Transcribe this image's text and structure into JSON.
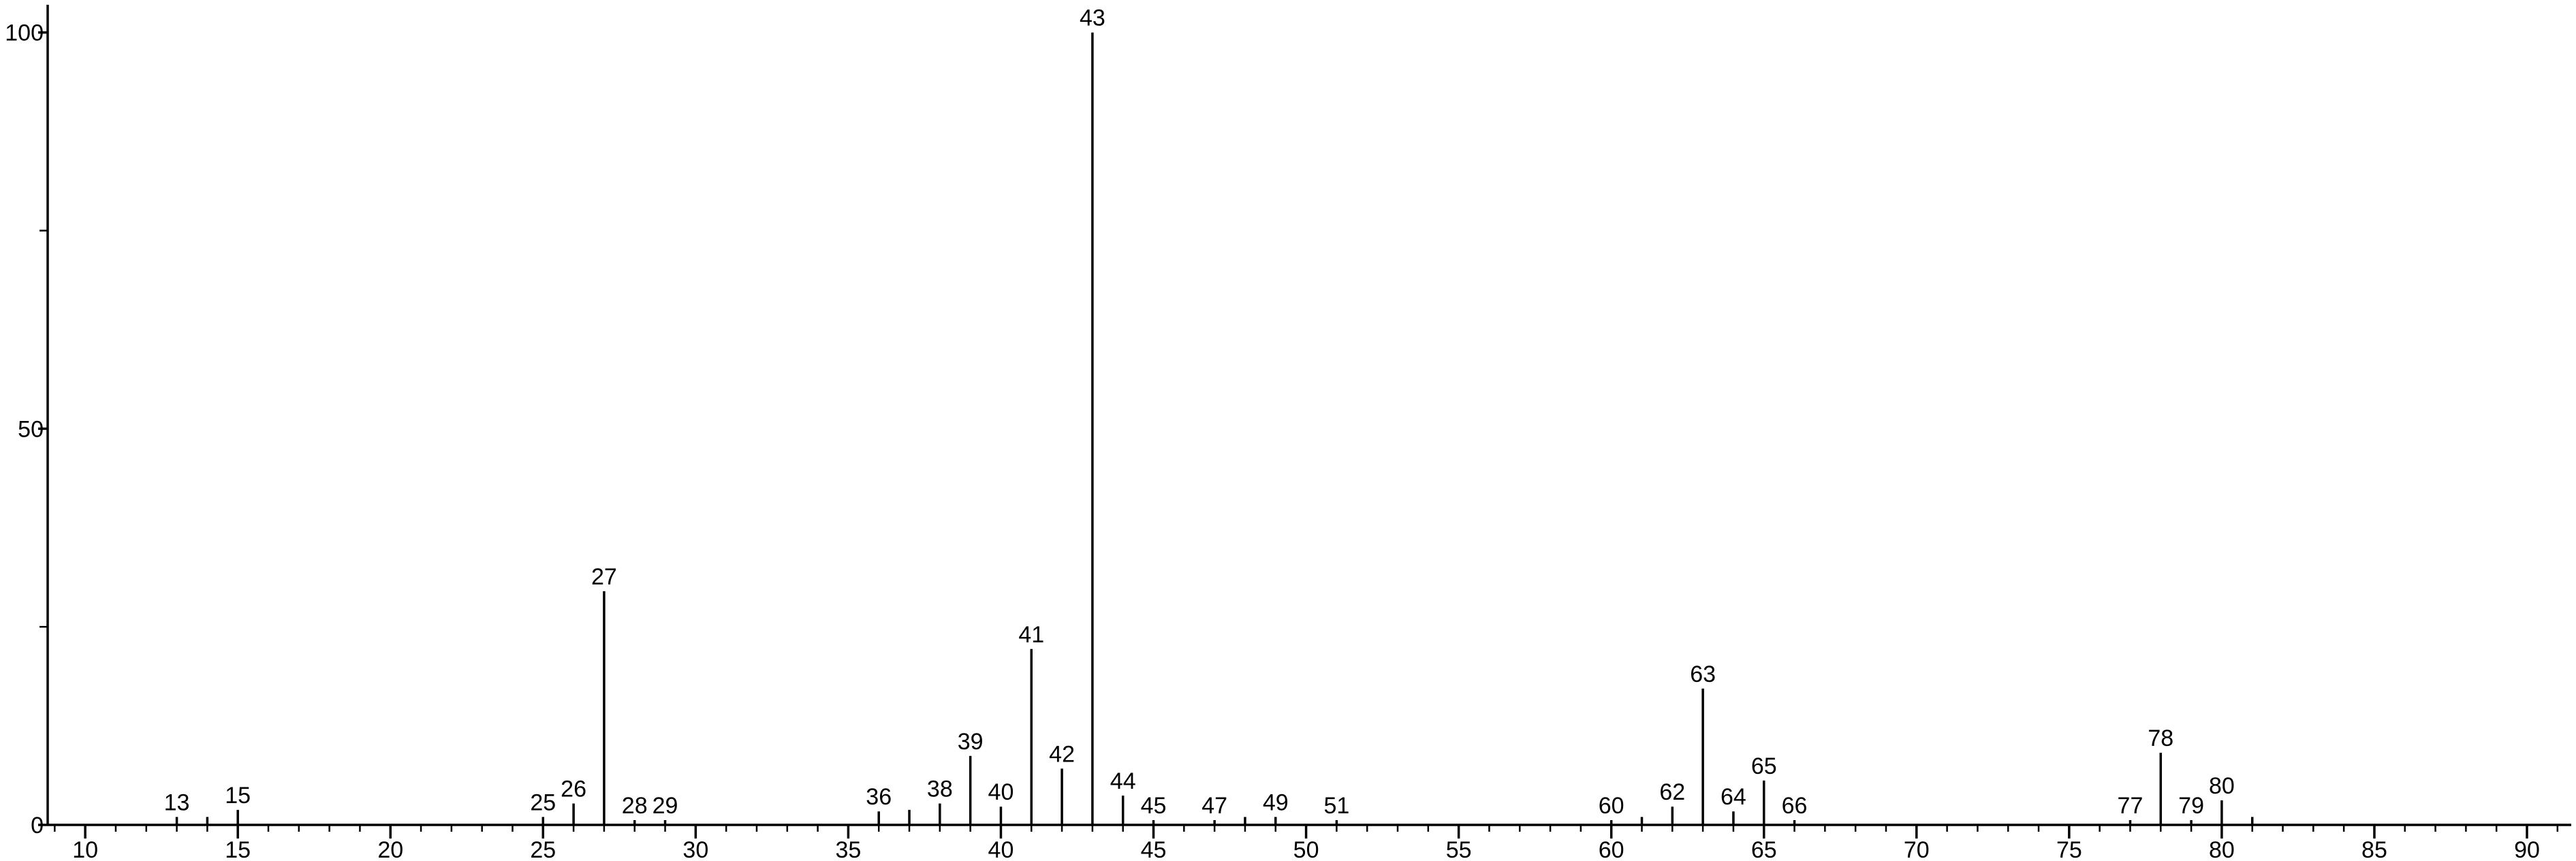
{
  "chart_data": {
    "type": "stem",
    "x": [
      13,
      14,
      15,
      25,
      26,
      27,
      28,
      29,
      36,
      37,
      38,
      39,
      40,
      41,
      42,
      43,
      44,
      45,
      47,
      48,
      49,
      51,
      60,
      61,
      62,
      63,
      64,
      65,
      66,
      77,
      78,
      79,
      80,
      81
    ],
    "values": [
      1.0,
      1.0,
      1.9,
      1.0,
      2.7,
      29.5,
      0.6,
      0.6,
      1.7,
      1.9,
      2.7,
      8.7,
      2.3,
      22.2,
      7.1,
      100,
      3.7,
      0.6,
      0.6,
      1.0,
      1.0,
      0.6,
      0.6,
      1.0,
      2.3,
      17.2,
      1.7,
      5.6,
      0.6,
      0.6,
      9.1,
      0.6,
      3.1,
      1.0
    ],
    "point_labels": [
      "13",
      null,
      "15",
      "25",
      "26",
      "27",
      "28",
      "29",
      "36",
      null,
      "38",
      "39",
      "40",
      "41",
      "42",
      "43",
      "44",
      "45",
      "47",
      null,
      "49",
      "51",
      "60",
      null,
      "62",
      "63",
      "64",
      "65",
      "66",
      "77",
      "78",
      "79",
      "80",
      null
    ],
    "color": "#000000",
    "xlim": [
      8.77,
      91.45
    ],
    "xticks": [
      10,
      15,
      20,
      25,
      30,
      35,
      40,
      45,
      50,
      55,
      60,
      65,
      70,
      75,
      80,
      85,
      90
    ],
    "xminor_step": 1,
    "ylim": [
      0,
      103.5
    ],
    "yticks": [
      0,
      50,
      100
    ],
    "yminor_step": 25
  }
}
